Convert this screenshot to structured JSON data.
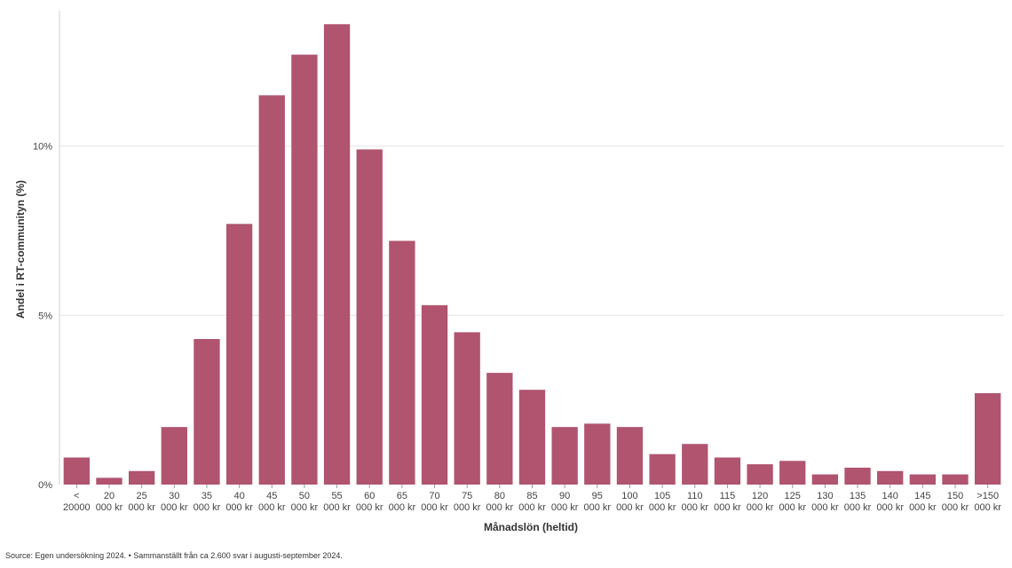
{
  "chart_data": {
    "type": "bar",
    "xlabel": "Månadslön (heltid)",
    "ylabel": "Andel i RT-communityn (%)",
    "ylim": [
      0,
      14
    ],
    "y_ticks": [
      {
        "value": 0,
        "label": "0%"
      },
      {
        "value": 5,
        "label": "5%"
      },
      {
        "value": 10,
        "label": "10%"
      }
    ],
    "grid": true,
    "bar_color": "#b05470",
    "categories": [
      [
        "<",
        "20000"
      ],
      [
        "20",
        "000 kr"
      ],
      [
        "25",
        "000 kr"
      ],
      [
        "30",
        "000 kr"
      ],
      [
        "35",
        "000 kr"
      ],
      [
        "40",
        "000 kr"
      ],
      [
        "45",
        "000 kr"
      ],
      [
        "50",
        "000 kr"
      ],
      [
        "55",
        "000 kr"
      ],
      [
        "60",
        "000 kr"
      ],
      [
        "65",
        "000 kr"
      ],
      [
        "70",
        "000 kr"
      ],
      [
        "75",
        "000 kr"
      ],
      [
        "80",
        "000 kr"
      ],
      [
        "85",
        "000 kr"
      ],
      [
        "90",
        "000 kr"
      ],
      [
        "95",
        "000 kr"
      ],
      [
        "100",
        "000 kr"
      ],
      [
        "105",
        "000 kr"
      ],
      [
        "110",
        "000 kr"
      ],
      [
        "115",
        "000 kr"
      ],
      [
        "120",
        "000 kr"
      ],
      [
        "125",
        "000 kr"
      ],
      [
        "130",
        "000 kr"
      ],
      [
        "135",
        "000 kr"
      ],
      [
        "140",
        "000 kr"
      ],
      [
        "145",
        "000 kr"
      ],
      [
        "150",
        "000 kr"
      ],
      [
        ">150",
        "000 kr"
      ]
    ],
    "values": [
      0.8,
      0.2,
      0.4,
      1.7,
      4.3,
      7.7,
      11.5,
      12.7,
      13.6,
      9.9,
      7.2,
      5.3,
      4.5,
      3.3,
      2.8,
      1.7,
      1.8,
      1.7,
      0.9,
      1.2,
      0.8,
      0.6,
      0.7,
      0.3,
      0.5,
      0.4,
      0.3,
      0.3,
      2.7
    ]
  },
  "source_text": "Source: Egen undersökning 2024. • Sammanställt från ca 2.600 svar i augusti-september 2024."
}
